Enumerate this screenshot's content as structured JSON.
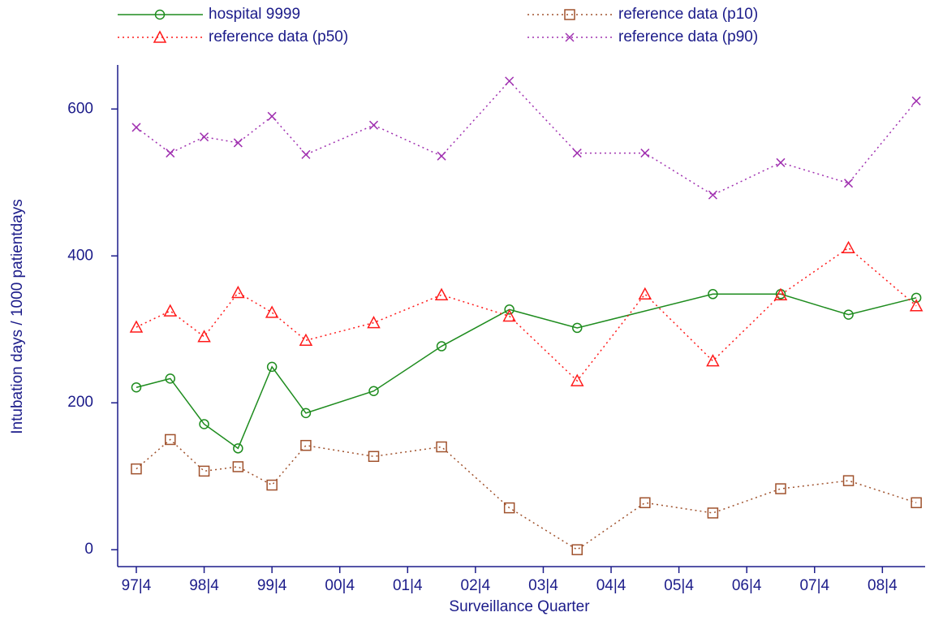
{
  "chart_data": {
    "type": "line",
    "y_label": "Intubation days / 1000 patientdays",
    "x_label": "Surveillance Quarter",
    "xlim": [
      1997.475,
      2009.38
    ],
    "xticks": [
      {
        "value": 1997.75,
        "label": "97|4"
      },
      {
        "value": 1998.75,
        "label": "98|4"
      },
      {
        "value": 1999.75,
        "label": "99|4"
      },
      {
        "value": 2000.75,
        "label": "00|4"
      },
      {
        "value": 2001.75,
        "label": "01|4"
      },
      {
        "value": 2002.75,
        "label": "02|4"
      },
      {
        "value": 2003.75,
        "label": "03|4"
      },
      {
        "value": 2004.75,
        "label": "04|4"
      },
      {
        "value": 2005.75,
        "label": "05|4"
      },
      {
        "value": 2006.75,
        "label": "06|4"
      },
      {
        "value": 2007.75,
        "label": "07|4"
      },
      {
        "value": 2008.75,
        "label": "08|4"
      }
    ],
    "ylim": [
      -23,
      660
    ],
    "yticks": [
      0,
      200,
      400,
      600
    ],
    "series": [
      {
        "name": "hospital 9999",
        "color": "#1e8c1e",
        "marker": "circle",
        "line": "solid",
        "x": [
          1997.75,
          1998.25,
          1998.75,
          1999.25,
          1999.75,
          2000.25,
          2001.25,
          2002.25,
          2003.25,
          2004.25,
          2006.25,
          2007.25,
          2008.25,
          2009.25
        ],
        "values": [
          221,
          233,
          171,
          138,
          249,
          186,
          216,
          277,
          327,
          302,
          348,
          348,
          320,
          343
        ]
      },
      {
        "name": "reference data (p10)",
        "color": "#a0522d",
        "marker": "square",
        "line": "dotted",
        "x": [
          1997.75,
          1998.25,
          1998.75,
          1999.25,
          1999.75,
          2000.25,
          2001.25,
          2002.25,
          2003.25,
          2004.25,
          2005.25,
          2006.25,
          2007.25,
          2008.25,
          2009.25
        ],
        "values": [
          110,
          150,
          107,
          113,
          88,
          142,
          127,
          140,
          57,
          0,
          64,
          50,
          83,
          94,
          64
        ]
      },
      {
        "name": "reference data (p50)",
        "color": "#ff1a1a",
        "marker": "triangle",
        "line": "dotted",
        "x": [
          1997.75,
          1998.25,
          1998.75,
          1999.25,
          1999.75,
          2000.25,
          2001.25,
          2002.25,
          2003.25,
          2004.25,
          2005.25,
          2006.25,
          2007.25,
          2008.25,
          2009.25
        ],
        "values": [
          303,
          325,
          290,
          350,
          323,
          285,
          309,
          347,
          318,
          230,
          348,
          257,
          347,
          411,
          332
        ]
      },
      {
        "name": "reference data (p90)",
        "color": "#a030b0",
        "marker": "x",
        "line": "dotted",
        "x": [
          1997.75,
          1998.25,
          1998.75,
          1999.25,
          1999.75,
          2000.25,
          2001.25,
          2002.25,
          2003.25,
          2004.25,
          2005.25,
          2006.25,
          2007.25,
          2008.25,
          2009.25
        ],
        "values": [
          575,
          540,
          562,
          554,
          590,
          538,
          578,
          536,
          638,
          540,
          540,
          483,
          527,
          499,
          611
        ]
      }
    ]
  }
}
